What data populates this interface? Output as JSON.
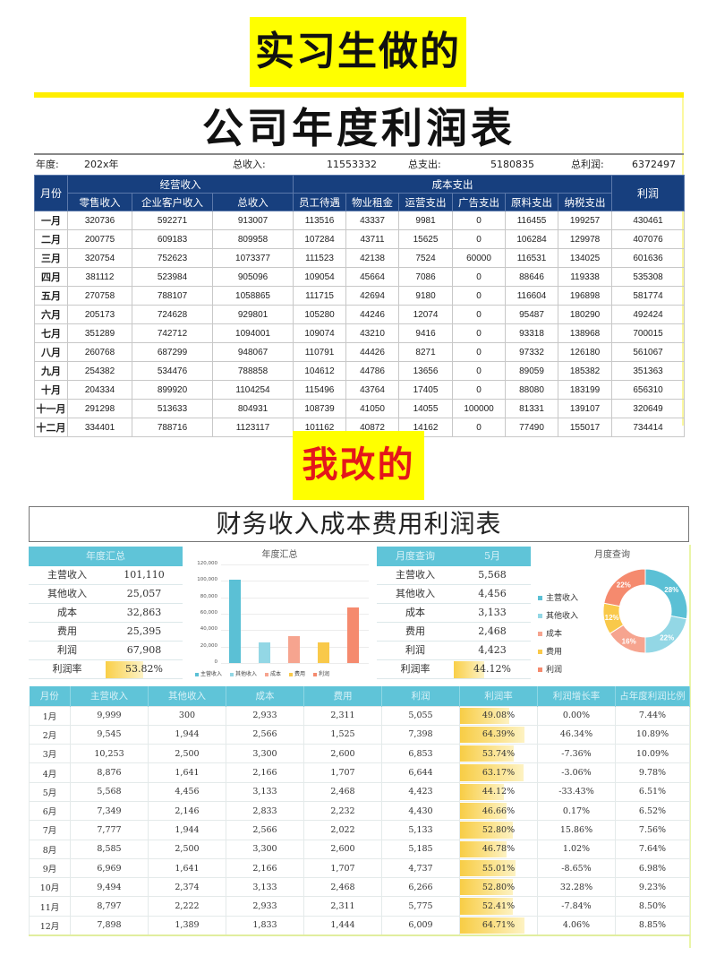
{
  "labels": {
    "top": "实习生做的",
    "middle": "我改的"
  },
  "original": {
    "title": "公司年度利润表",
    "meta": {
      "year_label": "年度:",
      "year_value": "202x年",
      "total_income_label": "总收入:",
      "total_income_value": "11553332",
      "total_expense_label": "总支出:",
      "total_expense_value": "5180835",
      "total_profit_label": "总利润:",
      "total_profit_value": "6372497"
    },
    "header": {
      "month": "月份",
      "income_group": "经营收入",
      "cost_group": "成本支出",
      "profit": "利润",
      "columns": [
        "零售收入",
        "企业客户收入",
        "总收入",
        "员工待遇",
        "物业租金",
        "运营支出",
        "广告支出",
        "原料支出",
        "纳税支出"
      ]
    },
    "rows": [
      [
        "一月",
        "320736",
        "592271",
        "913007",
        "113516",
        "43337",
        "9981",
        "0",
        "116455",
        "199257",
        "430461"
      ],
      [
        "二月",
        "200775",
        "609183",
        "809958",
        "107284",
        "43711",
        "15625",
        "0",
        "106284",
        "129978",
        "407076"
      ],
      [
        "三月",
        "320754",
        "752623",
        "1073377",
        "111523",
        "42138",
        "7524",
        "60000",
        "116531",
        "134025",
        "601636"
      ],
      [
        "四月",
        "381112",
        "523984",
        "905096",
        "109054",
        "45664",
        "7086",
        "0",
        "88646",
        "119338",
        "535308"
      ],
      [
        "五月",
        "270758",
        "788107",
        "1058865",
        "111715",
        "42694",
        "9180",
        "0",
        "116604",
        "196898",
        "581774"
      ],
      [
        "六月",
        "205173",
        "724628",
        "929801",
        "105280",
        "44246",
        "12074",
        "0",
        "95487",
        "180290",
        "492424"
      ],
      [
        "七月",
        "351289",
        "742712",
        "1094001",
        "109074",
        "43210",
        "9416",
        "0",
        "93318",
        "138968",
        "700015"
      ],
      [
        "八月",
        "260768",
        "687299",
        "948067",
        "110791",
        "44426",
        "8271",
        "0",
        "97332",
        "126180",
        "561067"
      ],
      [
        "九月",
        "254382",
        "534476",
        "788858",
        "104612",
        "44786",
        "13656",
        "0",
        "89059",
        "185382",
        "351363"
      ],
      [
        "十月",
        "204334",
        "899920",
        "1104254",
        "115496",
        "43764",
        "17405",
        "0",
        "88080",
        "183199",
        "656310"
      ],
      [
        "十一月",
        "291298",
        "513633",
        "804931",
        "108739",
        "41050",
        "14055",
        "100000",
        "81331",
        "139107",
        "320649"
      ],
      [
        "十二月",
        "334401",
        "788716",
        "1123117",
        "101162",
        "40872",
        "14162",
        "0",
        "77490",
        "155017",
        "734414"
      ]
    ]
  },
  "revised": {
    "title": "财务收入成本费用利润表",
    "annual_summary": {
      "title": "年度汇总",
      "rows": [
        {
          "label": "主营收入",
          "value": "101,110"
        },
        {
          "label": "其他收入",
          "value": "25,057"
        },
        {
          "label": "成本",
          "value": "32,863"
        },
        {
          "label": "费用",
          "value": "25,395"
        },
        {
          "label": "利润",
          "value": "67,908"
        },
        {
          "label": "利润率",
          "value": "53.82%",
          "bar_pct": 53.82
        }
      ]
    },
    "monthly_query": {
      "title": "月度查询",
      "selected_month": "5月",
      "rows": [
        {
          "label": "主营收入",
          "value": "5,568"
        },
        {
          "label": "其他收入",
          "value": "4,456"
        },
        {
          "label": "成本",
          "value": "3,133"
        },
        {
          "label": "费用",
          "value": "2,468"
        },
        {
          "label": "利润",
          "value": "4,423"
        },
        {
          "label": "利润率",
          "value": "44.12%",
          "bar_pct": 44.12
        }
      ]
    },
    "table": {
      "columns": [
        "月份",
        "主营收入",
        "其他收入",
        "成本",
        "费用",
        "利润",
        "利润率",
        "利润增长率",
        "占年度利润比例"
      ],
      "rows": [
        [
          "1月",
          "9,999",
          "300",
          "2,933",
          "2,311",
          "5,055",
          "49.08%",
          "0.00%",
          "7.44%"
        ],
        [
          "2月",
          "9,545",
          "1,944",
          "2,566",
          "1,525",
          "7,398",
          "64.39%",
          "46.34%",
          "10.89%"
        ],
        [
          "3月",
          "10,253",
          "2,500",
          "3,300",
          "2,600",
          "6,853",
          "53.74%",
          "-7.36%",
          "10.09%"
        ],
        [
          "4月",
          "8,876",
          "1,641",
          "2,166",
          "1,707",
          "6,644",
          "63.17%",
          "-3.06%",
          "9.78%"
        ],
        [
          "5月",
          "5,568",
          "4,456",
          "3,133",
          "2,468",
          "4,423",
          "44.12%",
          "-33.43%",
          "6.51%"
        ],
        [
          "6月",
          "7,349",
          "2,146",
          "2,833",
          "2,232",
          "4,430",
          "46.66%",
          "0.17%",
          "6.52%"
        ],
        [
          "7月",
          "7,777",
          "1,944",
          "2,566",
          "2,022",
          "5,133",
          "52.80%",
          "15.86%",
          "7.56%"
        ],
        [
          "8月",
          "8,585",
          "2,500",
          "3,300",
          "2,600",
          "5,185",
          "46.78%",
          "1.02%",
          "7.64%"
        ],
        [
          "9月",
          "6,969",
          "1,641",
          "2,166",
          "1,707",
          "4,737",
          "55.01%",
          "-8.65%",
          "6.98%"
        ],
        [
          "10月",
          "9,494",
          "2,374",
          "3,133",
          "2,468",
          "6,266",
          "52.80%",
          "32.28%",
          "9.23%"
        ],
        [
          "11月",
          "8,797",
          "2,222",
          "2,933",
          "2,311",
          "5,775",
          "52.41%",
          "-7.84%",
          "8.50%"
        ],
        [
          "12月",
          "7,898",
          "1,389",
          "1,833",
          "1,444",
          "6,009",
          "64.71%",
          "4.06%",
          "8.85%"
        ]
      ]
    },
    "colors": {
      "header_teal": "#5fc4d8",
      "main_income": "#5bc0d5",
      "other_income": "#93d7e5",
      "cost": "#f6a48f",
      "expense": "#f9c94a",
      "profit": "#f58a6e",
      "rate_bar": "#f8cd45"
    }
  },
  "chart_data": [
    {
      "type": "bar",
      "title": "年度汇总",
      "categories": [
        "主营收入",
        "其他收入",
        "成本",
        "费用",
        "利润"
      ],
      "values": [
        101110,
        25057,
        32863,
        25395,
        67908
      ],
      "ylim": [
        0,
        120000
      ],
      "yticks": [
        "0",
        "20,000",
        "40,000",
        "60,000",
        "80,000",
        "100,000",
        "120,000"
      ],
      "legend_position": "bottom",
      "grid": true
    },
    {
      "type": "pie",
      "subtype": "donut",
      "title": "月度查询",
      "categories": [
        "主营收入",
        "其他收入",
        "成本",
        "费用",
        "利润"
      ],
      "values": [
        28,
        22,
        16,
        12,
        22
      ],
      "labels": [
        "28%",
        "22%",
        "16%",
        "12%",
        "22%"
      ],
      "legend_position": "left"
    }
  ]
}
